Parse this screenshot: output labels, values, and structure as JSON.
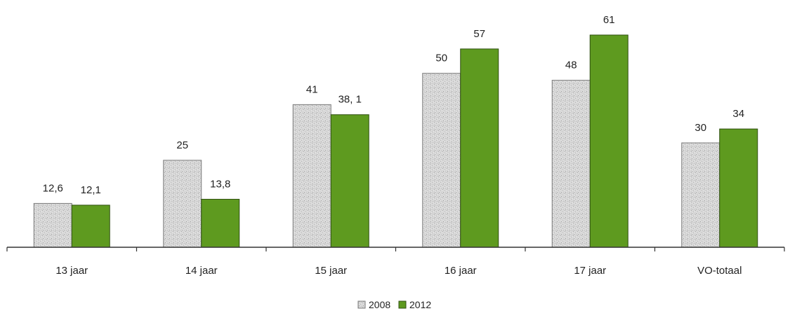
{
  "chart_data": {
    "type": "bar",
    "categories": [
      "13 jaar",
      "14 jaar",
      "15 jaar",
      "16 jaar",
      "17 jaar",
      "VO-totaal"
    ],
    "series": [
      {
        "name": "2008",
        "values": [
          12.6,
          25,
          41,
          50,
          48,
          30
        ],
        "labels": [
          "12,6",
          "25",
          "41",
          "50",
          "48",
          "30"
        ],
        "color": "#d4d4d4",
        "pattern": "stippled-gray"
      },
      {
        "name": "2012",
        "values": [
          12.1,
          13.8,
          38.1,
          57,
          61,
          34
        ],
        "labels": [
          "12,1",
          "13,8",
          "38, 1",
          "57",
          "61",
          "34"
        ],
        "color": "#5e9a1f"
      }
    ],
    "title": "",
    "xlabel": "",
    "ylabel": "",
    "ylim": [
      0,
      61
    ],
    "grid": false,
    "y_axis_visible": false,
    "legend": {
      "placement": "bottom-center",
      "entries": [
        "2008",
        "2012"
      ]
    }
  }
}
